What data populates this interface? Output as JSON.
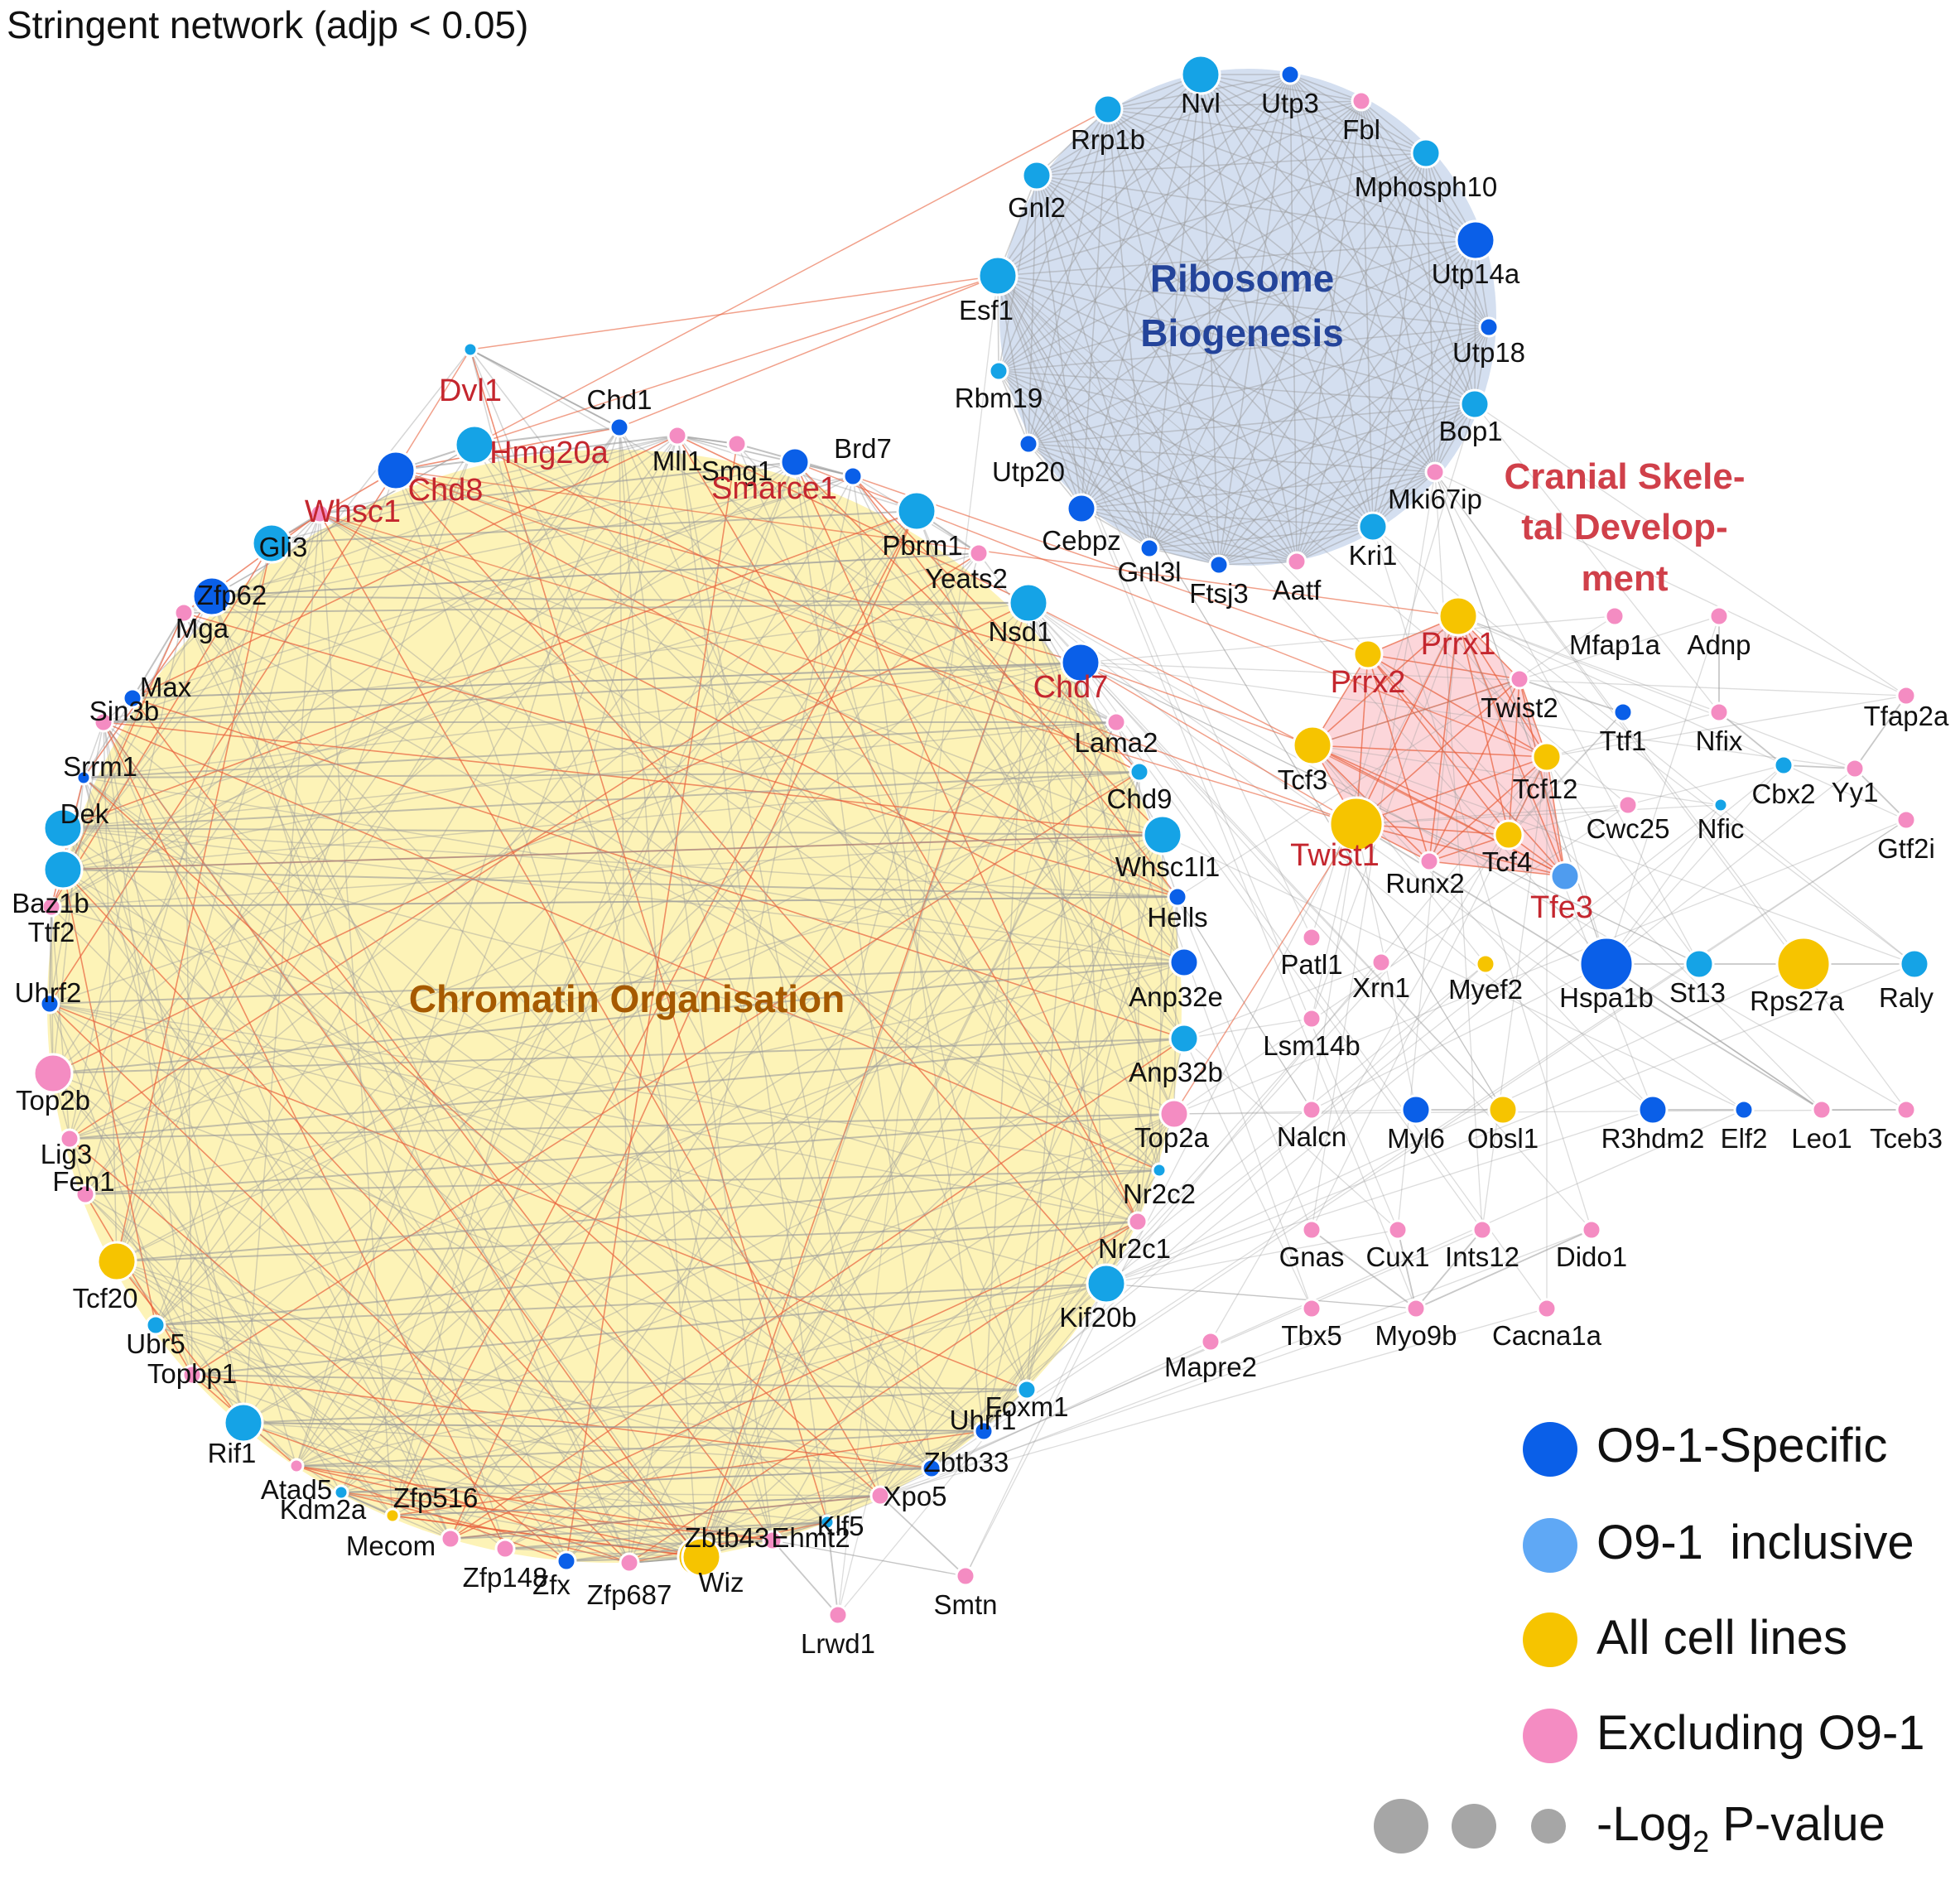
{
  "title": "Stringent network (adjp < 0.05)",
  "colors": {
    "o91_specific": "#0a5fe8",
    "o91_inclusive": "#15a3e6",
    "all_cell_lines": "#f6c400",
    "excluding_o91": "#f48cc2",
    "size_key": "#a6a6a6",
    "edge_gray": "#9a9a9a",
    "edge_red": "#e8603c",
    "module_chromatin_fill": "#fdf2b3",
    "module_ribosome_fill": "#cfdcee",
    "module_cranial_fill": "#fbcfd3",
    "module_chromatin_text": "#a65a00",
    "module_ribosome_text": "#24449a",
    "module_cranial_text": "#d0404a",
    "highlight_label": "#c4262e"
  },
  "modules": {
    "chromatin": "Chromatin Organisation",
    "ribosome_line1": "Ribosome",
    "ribosome_line2": "Biogenesis",
    "cranial_line1": "Cranial Skele-",
    "cranial_line2": "tal Develop-",
    "cranial_line3": "ment"
  },
  "legend": {
    "items": [
      {
        "label": "O9-1-Specific",
        "color": "#0a5fe8"
      },
      {
        "label": "O9-1  inclusive",
        "color": "#5fa8f5"
      },
      {
        "label": "All cell lines",
        "color": "#f6c400"
      },
      {
        "label": "Excluding O9-1",
        "color": "#f48cc2"
      }
    ],
    "size_label": "-Log",
    "size_label_sub": "2",
    "size_label_tail": " P-value"
  },
  "nodes": [
    {
      "label": "Nvl",
      "cat": "inc",
      "size": "L"
    },
    {
      "label": "Utp3",
      "cat": "spec",
      "size": "S"
    },
    {
      "label": "Fbl",
      "cat": "exc",
      "size": "S"
    },
    {
      "label": "Rrp1b",
      "cat": "inc",
      "size": "M"
    },
    {
      "label": "Mphosph10",
      "cat": "inc",
      "size": "M"
    },
    {
      "label": "Gnl2",
      "cat": "inc",
      "size": "M"
    },
    {
      "label": "Utp14a",
      "cat": "spec",
      "size": "L"
    },
    {
      "label": "Esf1",
      "cat": "inc",
      "size": "L"
    },
    {
      "label": "Utp18",
      "cat": "spec",
      "size": "S"
    },
    {
      "label": "Rbm19",
      "cat": "inc",
      "size": "S"
    },
    {
      "label": "Bop1",
      "cat": "inc",
      "size": "M"
    },
    {
      "label": "Utp20",
      "cat": "spec",
      "size": "S"
    },
    {
      "label": "Mki67ip",
      "cat": "exc",
      "size": "S"
    },
    {
      "label": "Cebpz",
      "cat": "spec",
      "size": "M"
    },
    {
      "label": "Kri1",
      "cat": "inc",
      "size": "M"
    },
    {
      "label": "Gnl3l",
      "cat": "spec",
      "size": "S"
    },
    {
      "label": "Ftsj3",
      "cat": "spec",
      "size": "S"
    },
    {
      "label": "Aatf",
      "cat": "exc",
      "size": "S"
    },
    {
      "label": "Dvl1",
      "cat": "inc",
      "size": "XS",
      "hl": true
    },
    {
      "label": "Chd1",
      "cat": "spec",
      "size": "S"
    },
    {
      "label": "Hmg20a",
      "cat": "inc",
      "size": "L",
      "hl": true
    },
    {
      "label": "Chd8",
      "cat": "spec",
      "size": "L",
      "hl": true
    },
    {
      "label": "Mll1",
      "cat": "exc",
      "size": "S"
    },
    {
      "label": "Smg1",
      "cat": "exc",
      "size": "S"
    },
    {
      "label": "Brd7",
      "cat": "spec",
      "size": "S"
    },
    {
      "label": "Smarce1",
      "cat": "spec",
      "size": "M",
      "hl": true
    },
    {
      "label": "Whsc1",
      "cat": "exc",
      "size": "S",
      "hl": true
    },
    {
      "label": "Gli3",
      "cat": "inc",
      "size": "L"
    },
    {
      "label": "Pbrm1",
      "cat": "inc",
      "size": "L"
    },
    {
      "label": "Yeats2",
      "cat": "exc",
      "size": "S"
    },
    {
      "label": "Zfp62",
      "cat": "spec",
      "size": "L"
    },
    {
      "label": "Nsd1",
      "cat": "inc",
      "size": "L"
    },
    {
      "label": "Mga",
      "cat": "exc",
      "size": "S"
    },
    {
      "label": "Max",
      "cat": "spec",
      "size": "S"
    },
    {
      "label": "Chd7",
      "cat": "spec",
      "size": "L",
      "hl": true
    },
    {
      "label": "Sin3b",
      "cat": "exc",
      "size": "S"
    },
    {
      "label": "Lama2",
      "cat": "exc",
      "size": "S"
    },
    {
      "label": "Srrm1",
      "cat": "spec",
      "size": "XS"
    },
    {
      "label": "Chd9",
      "cat": "inc",
      "size": "S"
    },
    {
      "label": "Dek",
      "cat": "inc",
      "size": "L"
    },
    {
      "label": "Whsc1l1",
      "cat": "inc",
      "size": "L"
    },
    {
      "label": "Baz1b",
      "cat": "inc",
      "size": "L"
    },
    {
      "label": "Hells",
      "cat": "spec",
      "size": "S"
    },
    {
      "label": "Ttf2",
      "cat": "exc",
      "size": "S"
    },
    {
      "label": "Uhrf2",
      "cat": "spec",
      "size": "S"
    },
    {
      "label": "Anp32e",
      "cat": "spec",
      "size": "M"
    },
    {
      "label": "Top2b",
      "cat": "exc",
      "size": "L"
    },
    {
      "label": "Anp32b",
      "cat": "inc",
      "size": "M"
    },
    {
      "label": "Lig3",
      "cat": "exc",
      "size": "S"
    },
    {
      "label": "Top2a",
      "cat": "exc",
      "size": "M"
    },
    {
      "label": "Fen1",
      "cat": "exc",
      "size": "S"
    },
    {
      "label": "Nr2c2",
      "cat": "inc",
      "size": "XS"
    },
    {
      "label": "Tcf20",
      "cat": "all",
      "size": "L"
    },
    {
      "label": "Nr2c1",
      "cat": "exc",
      "size": "S"
    },
    {
      "label": "Ubr5",
      "cat": "inc",
      "size": "S"
    },
    {
      "label": "Kif20b",
      "cat": "inc",
      "size": "L"
    },
    {
      "label": "Topbp1",
      "cat": "exc",
      "size": "S"
    },
    {
      "label": "Foxm1",
      "cat": "inc",
      "size": "S"
    },
    {
      "label": "Rif1",
      "cat": "inc",
      "size": "L"
    },
    {
      "label": "Uhrf1",
      "cat": "spec",
      "size": "S"
    },
    {
      "label": "Atad5",
      "cat": "exc",
      "size": "XS"
    },
    {
      "label": "Zbtb33",
      "cat": "spec",
      "size": "S"
    },
    {
      "label": "Kdm2a",
      "cat": "inc",
      "size": "XS"
    },
    {
      "label": "Zfp516",
      "cat": "all",
      "size": "XS"
    },
    {
      "label": "Xpo5",
      "cat": "exc",
      "size": "S"
    },
    {
      "label": "Mecom",
      "cat": "exc",
      "size": "S"
    },
    {
      "label": "Klf5",
      "cat": "inc",
      "size": "XS"
    },
    {
      "label": "Zfp148",
      "cat": "exc",
      "size": "S"
    },
    {
      "label": "Ehmt2",
      "cat": "exc",
      "size": "S"
    },
    {
      "label": "Zfx",
      "cat": "spec",
      "size": "S"
    },
    {
      "label": "Zbtb43",
      "cat": "all",
      "size": "L"
    },
    {
      "label": "Zfp687",
      "cat": "exc",
      "size": "S"
    },
    {
      "label": "Wiz",
      "cat": "all",
      "size": "L"
    },
    {
      "label": "Lrwd1",
      "cat": "exc",
      "size": "S"
    },
    {
      "label": "Smtn",
      "cat": "exc",
      "size": "S"
    },
    {
      "label": "Prrx1",
      "cat": "all",
      "size": "L",
      "hl": true
    },
    {
      "label": "Prrx2",
      "cat": "all",
      "size": "M",
      "hl": true
    },
    {
      "label": "Twist2",
      "cat": "exc",
      "size": "S"
    },
    {
      "label": "Tcf3",
      "cat": "all",
      "size": "L"
    },
    {
      "label": "Tcf12",
      "cat": "all",
      "size": "M"
    },
    {
      "label": "Twist1",
      "cat": "all",
      "size": "XL",
      "hl": true
    },
    {
      "label": "Tcf4",
      "cat": "all",
      "size": "M"
    },
    {
      "label": "Runx2",
      "cat": "exc",
      "size": "S"
    },
    {
      "label": "Tfe3",
      "cat": "incl",
      "size": "M",
      "hl": true
    },
    {
      "label": "Mfap1a",
      "cat": "exc",
      "size": "S"
    },
    {
      "label": "Adnp",
      "cat": "exc",
      "size": "S"
    },
    {
      "label": "Ttf1",
      "cat": "spec",
      "size": "S"
    },
    {
      "label": "Nfix",
      "cat": "exc",
      "size": "S"
    },
    {
      "label": "Tfap2a",
      "cat": "exc",
      "size": "S"
    },
    {
      "label": "Cbx2",
      "cat": "inc",
      "size": "S"
    },
    {
      "label": "Yy1",
      "cat": "exc",
      "size": "S"
    },
    {
      "label": "Cwc25",
      "cat": "exc",
      "size": "S"
    },
    {
      "label": "Nfic",
      "cat": "inc",
      "size": "XS"
    },
    {
      "label": "Gtf2i",
      "cat": "exc",
      "size": "S"
    },
    {
      "label": "Patl1",
      "cat": "exc",
      "size": "S"
    },
    {
      "label": "Xrn1",
      "cat": "exc",
      "size": "S"
    },
    {
      "label": "Myef2",
      "cat": "all",
      "size": "S"
    },
    {
      "label": "Hspa1b",
      "cat": "spec",
      "size": "XL"
    },
    {
      "label": "St13",
      "cat": "inc",
      "size": "M"
    },
    {
      "label": "Rps27a",
      "cat": "all",
      "size": "XL"
    },
    {
      "label": "Raly",
      "cat": "inc",
      "size": "M"
    },
    {
      "label": "Lsm14b",
      "cat": "exc",
      "size": "S"
    },
    {
      "label": "Nalcn",
      "cat": "exc",
      "size": "S"
    },
    {
      "label": "Myl6",
      "cat": "spec",
      "size": "M"
    },
    {
      "label": "Obsl1",
      "cat": "all",
      "size": "M"
    },
    {
      "label": "R3hdm2",
      "cat": "spec",
      "size": "M"
    },
    {
      "label": "Elf2",
      "cat": "spec",
      "size": "S"
    },
    {
      "label": "Leo1",
      "cat": "exc",
      "size": "S"
    },
    {
      "label": "Tceb3",
      "cat": "exc",
      "size": "S"
    },
    {
      "label": "Gnas",
      "cat": "exc",
      "size": "S"
    },
    {
      "label": "Cux1",
      "cat": "exc",
      "size": "S"
    },
    {
      "label": "Ints12",
      "cat": "exc",
      "size": "S"
    },
    {
      "label": "Dido1",
      "cat": "exc",
      "size": "S"
    },
    {
      "label": "Tbx5",
      "cat": "exc",
      "size": "S"
    },
    {
      "label": "Myo9b",
      "cat": "exc",
      "size": "S"
    },
    {
      "label": "Cacna1a",
      "cat": "exc",
      "size": "S"
    },
    {
      "label": "Mapre2",
      "cat": "exc",
      "size": "S"
    }
  ]
}
